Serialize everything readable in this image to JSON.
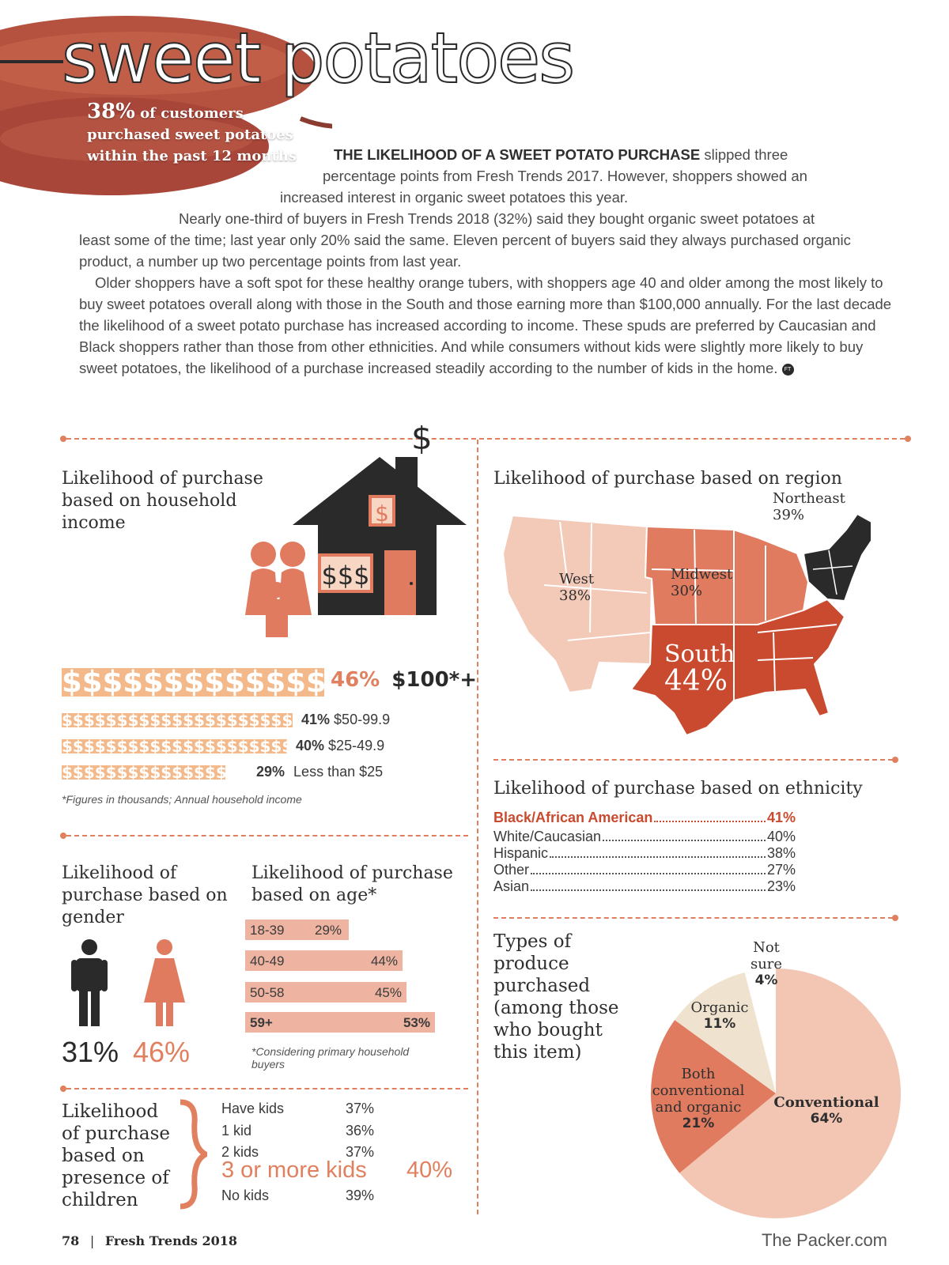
{
  "header": {
    "title": "sweet potatoes",
    "stat_pct": "38%",
    "stat_line1": "of customers",
    "stat_line2": "purchased sweet potatoes",
    "stat_line3": "within the past 12 months"
  },
  "article": {
    "lead": "THE LIKELIHOOD OF A SWEET POTATO PURCHASE",
    "p1_line1": "slipped three",
    "p1_line2": "percentage points from Fresh Trends 2017. However, shoppers showed an",
    "p1_line3": "increased interest in organic sweet potatoes this year.",
    "p2_line1": "Nearly one-third of buyers in Fresh Trends 2018 (32%) said they bought organic sweet potatoes at",
    "p2_rest": "least some of the time; last year only 20% said the same. Eleven percent of buyers said they always purchased organic product, a number up two percentage points from last year.",
    "p3": "Older shoppers have a soft spot for these healthy orange tubers, with shoppers age 40 and older among the most likely to buy sweet potatoes overall along with those in the South and those earning more than $100,000 annually. For the last decade the likelihood of a sweet potato purchase has increased according to income. These spuds are preferred by Caucasian and Black shoppers rather than those from other ethnicities. And while consumers without kids were slightly more likely to buy sweet potatoes, the likelihood of a purchase increased steadily according to the number of kids in the home.",
    "end_mark": "FT"
  },
  "colors": {
    "accent": "#e0805f",
    "dark": "#2a2a2a",
    "income_bar": "#f4b98a",
    "age_bar": "#eeb4a1",
    "ethnicity_highlight": "#c94a2e",
    "west": "#f3c9b8",
    "midwest": "#e07b60",
    "south": "#c94a2e",
    "northeast": "#2a2a2a"
  },
  "chart_data": [
    {
      "type": "bar",
      "title": "Likelihood of purchase based on household income",
      "icon": "house-family-icon",
      "house_symbols": [
        "$",
        "$",
        "$$$"
      ],
      "bar_glyph": "$",
      "categories": [
        "$100*+",
        "$50-99.9",
        "$25-49.9",
        "Less than $25"
      ],
      "values": [
        46,
        41,
        40,
        29
      ],
      "value_labels": [
        "46%",
        "41%",
        "40%",
        "29%"
      ],
      "note": "*Figures in thousands; Annual household income"
    },
    {
      "type": "bar",
      "title": "Likelihood of purchase based on gender",
      "icons": [
        "male-figure-icon",
        "female-figure-icon"
      ],
      "categories": [
        "Male",
        "Female"
      ],
      "values": [
        31,
        46
      ],
      "value_labels": [
        "31%",
        "46%"
      ]
    },
    {
      "type": "bar",
      "title": "Likelihood of purchase based on age*",
      "categories": [
        "18-39",
        "40-49",
        "50-58",
        "59+"
      ],
      "values": [
        29,
        44,
        45,
        53
      ],
      "value_labels": [
        "29%",
        "44%",
        "45%",
        "53%"
      ],
      "note": "*Considering primary household buyers"
    },
    {
      "type": "table",
      "title": "Likelihood of purchase based on presence of children",
      "rows": [
        {
          "label": "Have kids",
          "value": "37%"
        },
        {
          "label": "1 kid",
          "value": "36%"
        },
        {
          "label": "2 kids",
          "value": "37%"
        },
        {
          "label": "3 or more kids",
          "value": "40%"
        },
        {
          "label": "No kids",
          "value": "39%"
        }
      ]
    },
    {
      "type": "heatmap",
      "title": "Likelihood of purchase based on region",
      "regions": [
        {
          "name": "West",
          "value": "38%"
        },
        {
          "name": "Midwest",
          "value": "30%"
        },
        {
          "name": "South",
          "value": "44%"
        },
        {
          "name": "Northeast",
          "value": "39%"
        }
      ]
    },
    {
      "type": "table",
      "title": "Likelihood of purchase based on ethnicity",
      "rows": [
        {
          "label": "Black/African American",
          "value": "41%"
        },
        {
          "label": "White/Caucasian",
          "value": "40%"
        },
        {
          "label": "Hispanic",
          "value": "38%"
        },
        {
          "label": "Other",
          "value": "27%"
        },
        {
          "label": "Asian",
          "value": "23%"
        }
      ]
    },
    {
      "type": "pie",
      "title": "Types of produce purchased (among those who bought this item)",
      "slices": [
        {
          "name": "Conventional",
          "value": 64,
          "label": "64%",
          "color": "#f2c6b3"
        },
        {
          "name": "Both conventional and organic",
          "value": 21,
          "label": "21%",
          "color": "#e07b60"
        },
        {
          "name": "Organic",
          "value": 11,
          "label": "11%",
          "color": "#efe2cf"
        },
        {
          "name": "Not sure",
          "value": 4,
          "label": "4%",
          "color": "#ffffff"
        }
      ]
    }
  ],
  "footer": {
    "page": "78",
    "sep": "|",
    "pub": "Fresh Trends 2018",
    "site": "The Packer.com"
  }
}
